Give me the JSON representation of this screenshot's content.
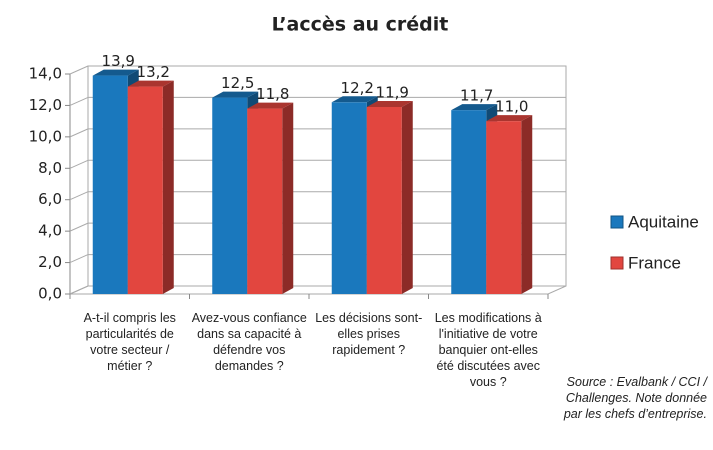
{
  "chart_data": {
    "type": "bar3d",
    "title": "L’accès au crédit",
    "categories": [
      "A-t-il compris les particularités de votre secteur / métier ?",
      "Avez-vous confiance dans sa capacité à défendre vos demandes ?",
      "Les décisions sont-elles prises rapidement ?",
      "Les modifications à l'initiative de votre banquier ont-elles été discutées avec vous ?"
    ],
    "series": [
      {
        "name": "Aquitaine",
        "color": "#1a78bd",
        "values": [
          13.9,
          12.5,
          12.2,
          11.7
        ],
        "value_labels": [
          "13,9",
          "12,5",
          "12,2",
          "11,7"
        ]
      },
      {
        "name": "France",
        "color": "#e2463f",
        "values": [
          13.2,
          11.8,
          11.9,
          11.0
        ],
        "value_labels": [
          "13,2",
          "11,8",
          "11,9",
          "11,0"
        ]
      }
    ],
    "ylim": [
      0,
      14
    ],
    "yticks": [
      {
        "value": 0,
        "label": "0,0"
      },
      {
        "value": 2,
        "label": "2,0"
      },
      {
        "value": 4,
        "label": "4,0"
      },
      {
        "value": 6,
        "label": "6,0"
      },
      {
        "value": 8,
        "label": "8,0"
      },
      {
        "value": 10,
        "label": "10,0"
      },
      {
        "value": 12,
        "label": "12,0"
      },
      {
        "value": 14,
        "label": "14,0"
      }
    ],
    "grid": true,
    "legend": "right",
    "source": "Source : Evalbank / CCI / Challenges. Note donnée par les chefs d’entreprise."
  }
}
